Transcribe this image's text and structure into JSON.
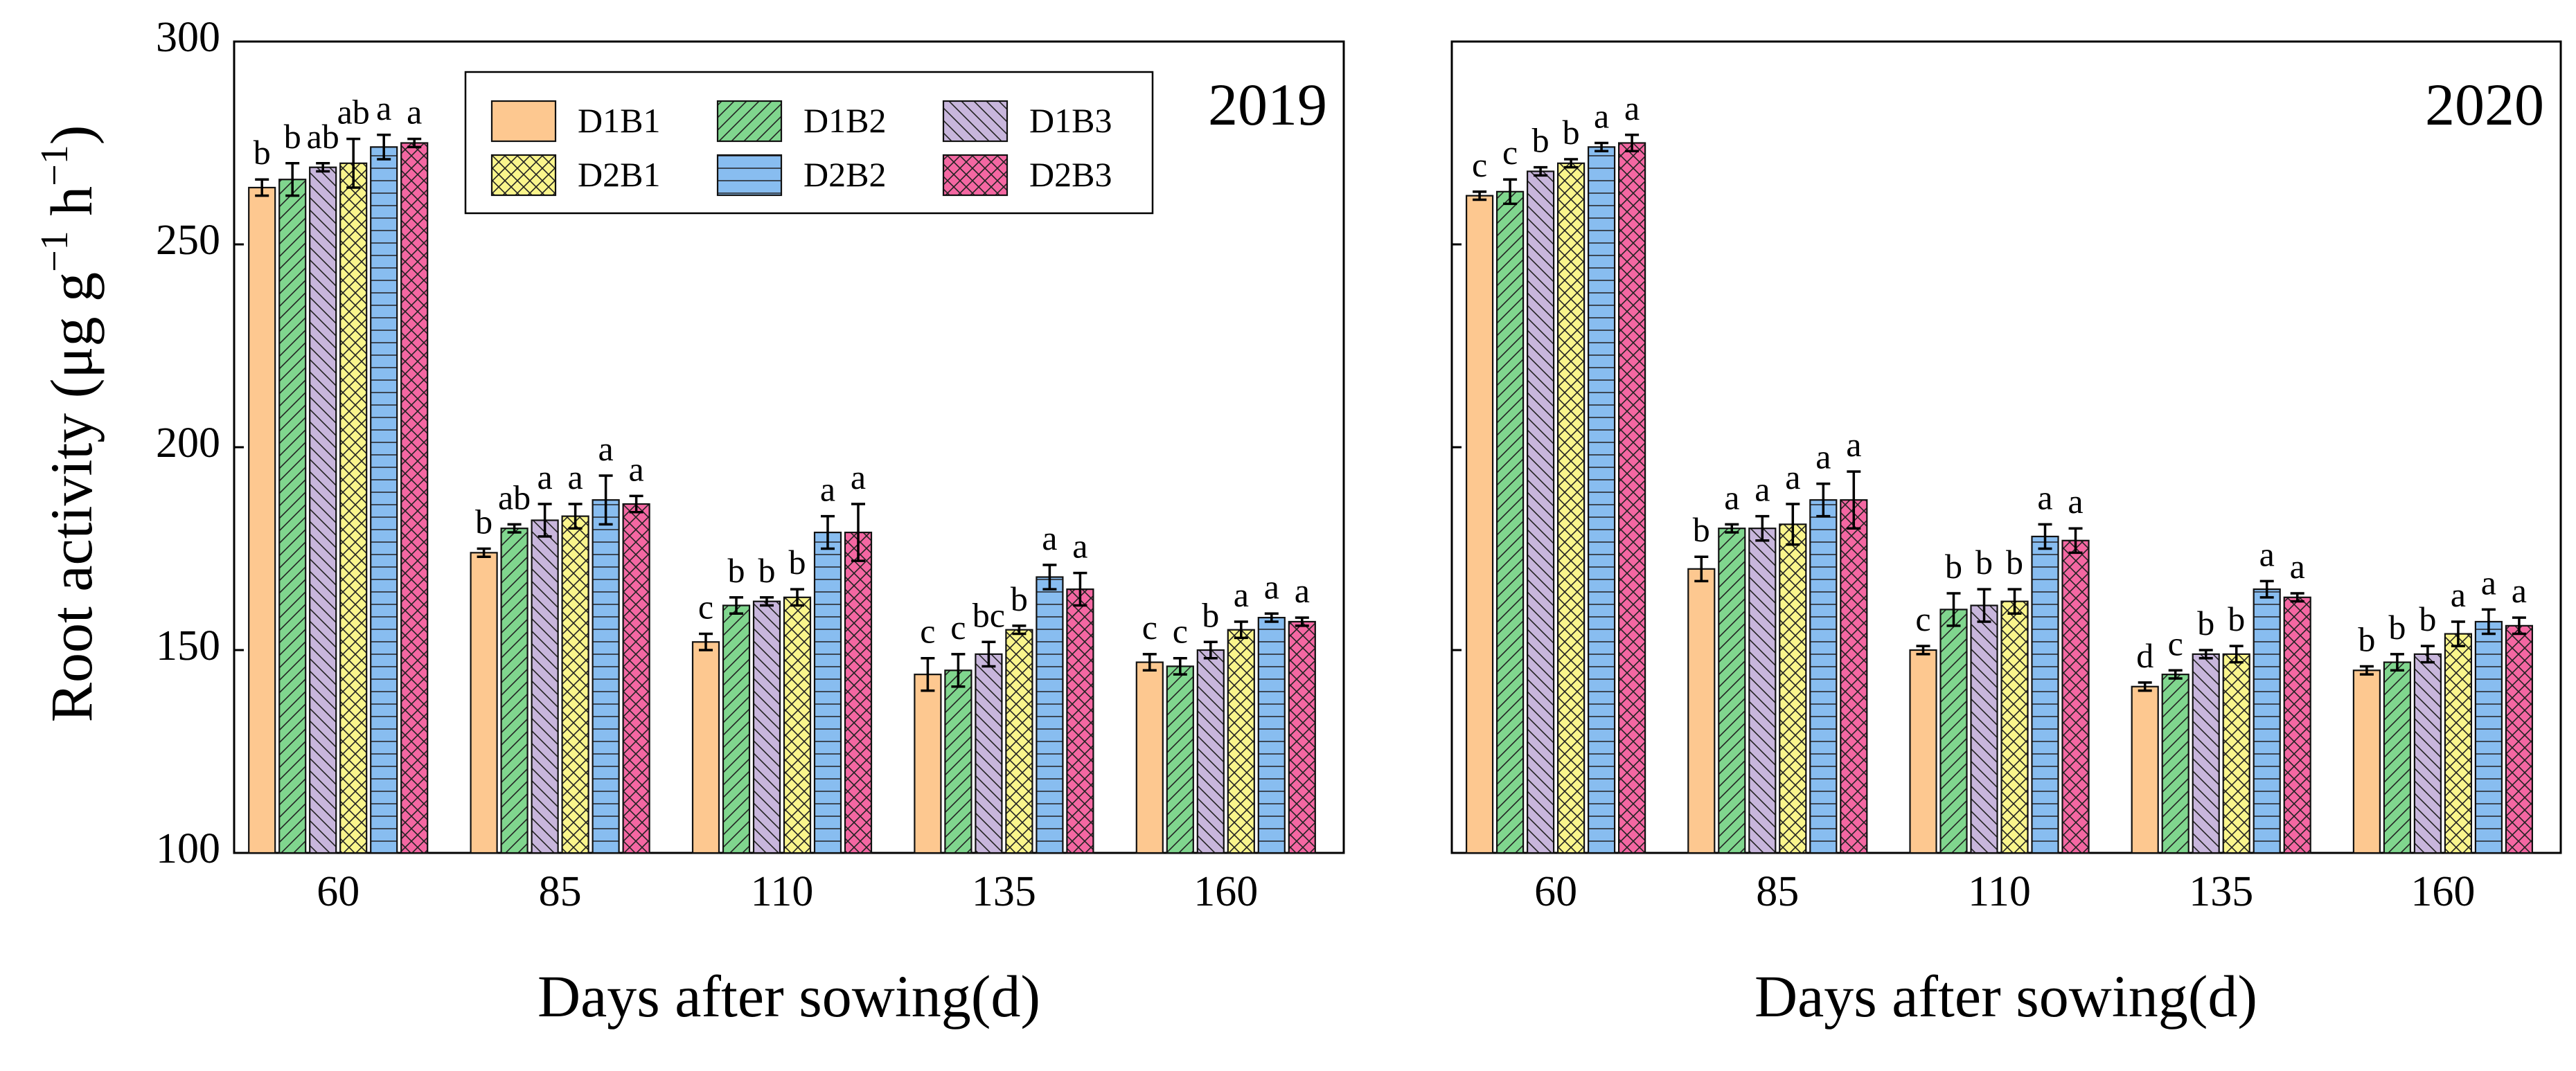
{
  "legend": {
    "series": [
      "D1B1",
      "D1B2",
      "D1B3",
      "D2B1",
      "D2B2",
      "D2B3"
    ]
  },
  "xlabel": "Days after sowing(d)",
  "ylabel_main": "Root activity (μg g",
  "ylabel_sup1": "−1",
  "ylabel_mid": " h",
  "ylabel_sup2": "−1",
  "ylabel_end": ")",
  "chart_data": [
    {
      "type": "bar",
      "title": "2019",
      "xlabel": "Days after sowing(d)",
      "ylabel": "Root activity (μg g−1 h−1)",
      "ylim": [
        100,
        300
      ],
      "yticks": [
        100,
        150,
        200,
        250,
        300
      ],
      "categories": [
        "60",
        "85",
        "110",
        "135",
        "160"
      ],
      "series": [
        {
          "name": "D1B1",
          "color": "#FDC890",
          "pattern": "none",
          "values": [
            264,
            174,
            152,
            144,
            147
          ],
          "errors": [
            2,
            1,
            2,
            4,
            2
          ],
          "letters": [
            "b",
            "b",
            "c",
            "c",
            "c"
          ]
        },
        {
          "name": "D1B2",
          "color": "#80D68E",
          "pattern": "diag-right",
          "values": [
            266,
            180,
            161,
            145,
            146
          ],
          "errors": [
            4,
            1,
            2,
            4,
            2
          ],
          "letters": [
            "b",
            "ab",
            "b",
            "c",
            "c"
          ]
        },
        {
          "name": "D1B3",
          "color": "#C8B6DC",
          "pattern": "diag-left",
          "values": [
            269,
            182,
            162,
            149,
            150
          ],
          "errors": [
            1,
            4,
            1,
            3,
            2
          ],
          "letters": [
            "ab",
            "a",
            "b",
            "bc",
            "b"
          ]
        },
        {
          "name": "D2B1",
          "color": "#FAF58C",
          "pattern": "cross",
          "values": [
            270,
            183,
            163,
            155,
            155
          ],
          "errors": [
            6,
            3,
            2,
            1,
            2
          ],
          "letters": [
            "ab",
            "a",
            "b",
            "b",
            "a"
          ]
        },
        {
          "name": "D2B2",
          "color": "#88BDF0",
          "pattern": "grid",
          "values": [
            274,
            187,
            179,
            168,
            158
          ],
          "errors": [
            3,
            6,
            4,
            3,
            1
          ],
          "letters": [
            "a",
            "a",
            "a",
            "a",
            "a"
          ]
        },
        {
          "name": "D2B3",
          "color": "#F467A2",
          "pattern": "cross-fine",
          "values": [
            275,
            186,
            179,
            165,
            157
          ],
          "errors": [
            1,
            2,
            7,
            4,
            1
          ],
          "letters": [
            "a",
            "a",
            "a",
            "a",
            "a"
          ]
        }
      ]
    },
    {
      "type": "bar",
      "title": "2020",
      "xlabel": "Days after sowing(d)",
      "ylabel": "",
      "ylim": [
        100,
        300
      ],
      "yticks": [
        100,
        150,
        200,
        250,
        300
      ],
      "categories": [
        "60",
        "85",
        "110",
        "135",
        "160"
      ],
      "series": [
        {
          "name": "D1B1",
          "color": "#FDC890",
          "pattern": "none",
          "values": [
            262,
            170,
            150,
            141,
            145
          ],
          "errors": [
            1,
            3,
            1,
            1,
            1
          ],
          "letters": [
            "c",
            "b",
            "c",
            "d",
            "b"
          ]
        },
        {
          "name": "D1B2",
          "color": "#80D68E",
          "pattern": "diag-right",
          "values": [
            263,
            180,
            160,
            144,
            147
          ],
          "errors": [
            3,
            1,
            4,
            1,
            2
          ],
          "letters": [
            "c",
            "a",
            "b",
            "c",
            "b"
          ]
        },
        {
          "name": "D1B3",
          "color": "#C8B6DC",
          "pattern": "diag-left",
          "values": [
            268,
            180,
            161,
            149,
            149
          ],
          "errors": [
            1,
            3,
            4,
            1,
            2
          ],
          "letters": [
            "b",
            "a",
            "b",
            "b",
            "b"
          ]
        },
        {
          "name": "D2B1",
          "color": "#FAF58C",
          "pattern": "cross",
          "values": [
            270,
            181,
            162,
            149,
            154
          ],
          "errors": [
            1,
            5,
            3,
            2,
            3
          ],
          "letters": [
            "b",
            "a",
            "b",
            "b",
            "a"
          ]
        },
        {
          "name": "D2B2",
          "color": "#88BDF0",
          "pattern": "grid",
          "values": [
            274,
            187,
            178,
            165,
            157
          ],
          "errors": [
            1,
            4,
            3,
            2,
            3
          ],
          "letters": [
            "a",
            "a",
            "a",
            "a",
            "a"
          ]
        },
        {
          "name": "D2B3",
          "color": "#F467A2",
          "pattern": "cross-fine",
          "values": [
            275,
            187,
            177,
            163,
            156
          ],
          "errors": [
            2,
            7,
            3,
            1,
            2
          ],
          "letters": [
            "a",
            "a",
            "a",
            "a",
            "a"
          ]
        }
      ]
    }
  ]
}
